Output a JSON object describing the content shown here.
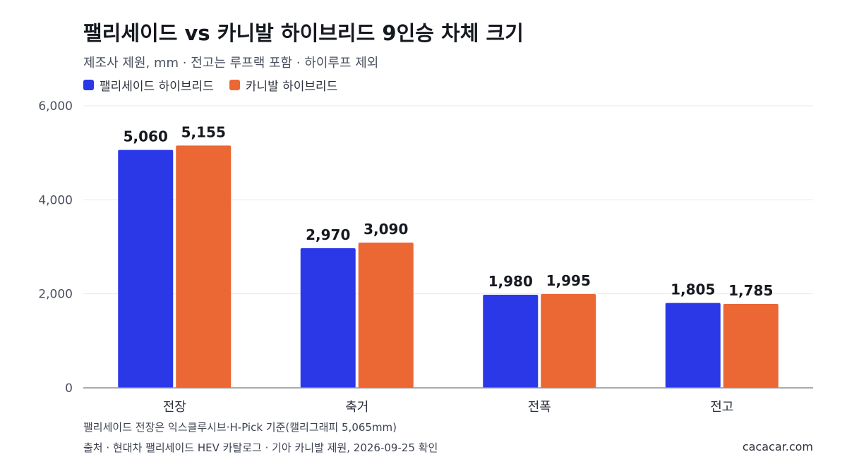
{
  "title": "팰리세이드 vs 카니발 하이브리드 9인승 차체 크기",
  "subtitle": "제조사 제원, mm · 전고는 루프랙 포함 · 하이루프 제외",
  "note": "팰리세이드 전장은 익스클루시브·H-Pick 기준(캘리그래피 5,065mm)",
  "source": "출처 · 현대차 팰리세이드 HEV 카탈로그 · 기아 카니발 제원, 2026-09-25 확인",
  "site": "cacacar.com",
  "chart_data": {
    "type": "bar",
    "categories": [
      "전장",
      "축거",
      "전폭",
      "전고"
    ],
    "series": [
      {
        "name": "팰리세이드 하이브리드",
        "color": "#2b38e8",
        "values": [
          5060,
          2970,
          1980,
          1805
        ],
        "labels": [
          "5,060",
          "2,970",
          "1,980",
          "1,805"
        ]
      },
      {
        "name": "카니발 하이브리드",
        "color": "#eb6734",
        "values": [
          5155,
          3090,
          1995,
          1785
        ],
        "labels": [
          "5,155",
          "3,090",
          "1,995",
          "1,785"
        ]
      }
    ],
    "ylim": [
      0,
      6000
    ],
    "yticks": [
      0,
      2000,
      4000,
      6000
    ],
    "ytick_labels": [
      "0",
      "2,000",
      "4,000",
      "6,000"
    ],
    "grid": true,
    "legend_position": "top-left"
  }
}
